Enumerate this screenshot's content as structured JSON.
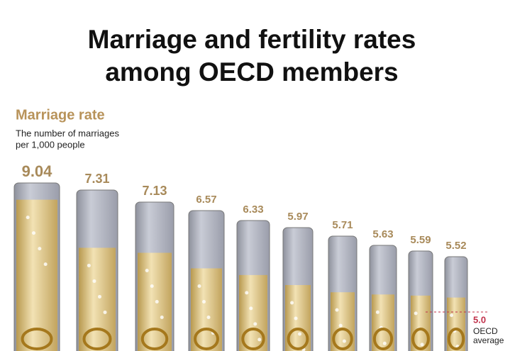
{
  "chart_data": {
    "type": "bar",
    "title": [
      "Marriage and fertility rates",
      "among OECD members"
    ],
    "subtitle": "Marriage rate",
    "description": [
      "The number of marriages",
      "per 1,000 people"
    ],
    "categories": [
      null,
      null,
      null,
      null,
      null,
      null,
      null,
      null,
      null,
      null
    ],
    "values": [
      9.04,
      7.31,
      7.13,
      6.57,
      6.33,
      5.97,
      5.71,
      5.63,
      5.59,
      5.52
    ],
    "color": "#e3cf9a",
    "reference": {
      "value": 5,
      "label": "5.0",
      "text": [
        "OECD",
        "average"
      ],
      "color": "#c0304a"
    }
  }
}
